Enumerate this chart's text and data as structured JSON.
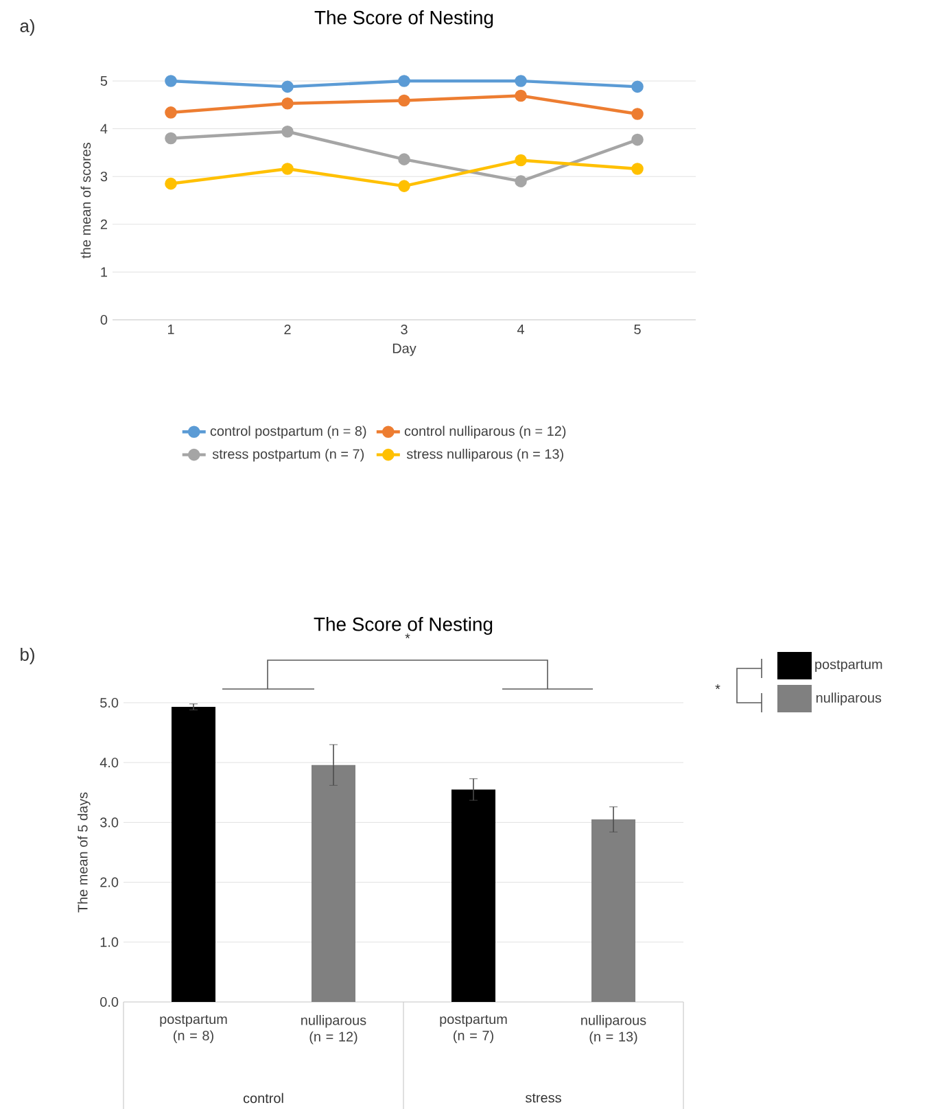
{
  "chart_data": [
    {
      "type": "line",
      "title": "The Score of Nesting",
      "xlabel": "Day",
      "ylabel": "the mean of scores",
      "categories": [
        "1",
        "2",
        "3",
        "4",
        "5"
      ],
      "ylim": [
        0,
        5
      ],
      "yticks": [
        0,
        1,
        2,
        3,
        4,
        5
      ],
      "grid": "y",
      "legend": "bottom",
      "marker": "circle",
      "line_style": "solid",
      "annotations": [
        "a)"
      ],
      "series": [
        {
          "name": "control postpartum (n = 8)",
          "color": "#5b9bd5",
          "values": [
            5.0,
            4.88,
            5.0,
            5.0,
            4.88
          ]
        },
        {
          "name": "control nulliparous (n = 12)",
          "color": "#ed7d31",
          "values": [
            4.34,
            4.53,
            4.59,
            4.69,
            4.31
          ]
        },
        {
          "name": "stress postpartum (n = 7)",
          "color": "#a5a5a5",
          "values": [
            3.8,
            3.94,
            3.36,
            2.9,
            3.77
          ]
        },
        {
          "name": "stress nulliparous (n = 13)",
          "color": "#ffc000",
          "values": [
            2.85,
            3.16,
            2.8,
            3.34,
            3.16
          ]
        }
      ]
    },
    {
      "type": "bar",
      "title": "The Score of Nesting",
      "ylabel": "The mean of 5 days",
      "categories": [
        "postpartum (n = 8)",
        "nulliparous (n = 12)",
        "postpartum (n = 7)",
        "nulliparous (n = 13)"
      ],
      "ylim": [
        0,
        5
      ],
      "yticks": [
        {
          "value": 0,
          "label": "0.0"
        },
        {
          "value": 1,
          "label": "1.0"
        },
        {
          "value": 2,
          "label": "2.0"
        },
        {
          "value": 3,
          "label": "3.0"
        },
        {
          "value": 4,
          "label": "4.0"
        },
        {
          "value": 5,
          "label": "5.0"
        }
      ],
      "grid": "y",
      "legend": "right",
      "annotations": [
        "b)",
        "*",
        "*",
        "control",
        "stress"
      ],
      "series": [
        {
          "name": "postpartum",
          "color": "#000000",
          "values": [
            4.93,
            null,
            3.55,
            null
          ],
          "errors": [
            0.05,
            null,
            0.18,
            null
          ]
        },
        {
          "name": "nulliparous",
          "color": "#808080",
          "values": [
            null,
            3.96,
            null,
            3.05
          ],
          "errors": [
            null,
            0.34,
            null,
            0.21
          ]
        }
      ]
    }
  ]
}
